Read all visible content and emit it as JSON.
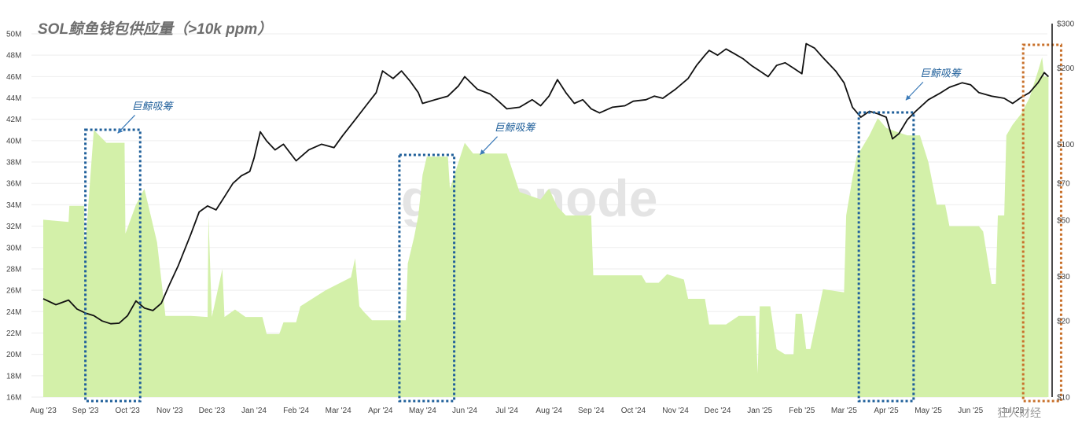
{
  "chart_data": {
    "type": "area",
    "title": "SOL鲸鱼钱包供应量（>10k ppm）",
    "watermark": "glassnode",
    "footer_text": "狂人财经",
    "x_ticks": [
      "Aug '23",
      "Sep '23",
      "Oct '23",
      "Nov '23",
      "Dec '23",
      "Jan '24",
      "Feb '24",
      "Mar '24",
      "Apr '24",
      "May '24",
      "Jun '24",
      "Jul '24",
      "Aug '24",
      "Sep '24",
      "Oct '24",
      "Nov '24",
      "Dec '24",
      "Jan '25",
      "Feb '25",
      "Mar '25",
      "Apr '25",
      "May '25",
      "Jun '25",
      "Jul '25"
    ],
    "y_left_ticks": [
      "50M",
      "48M",
      "46M",
      "44M",
      "42M",
      "40M",
      "38M",
      "36M",
      "34M",
      "32M",
      "30M",
      "28M",
      "26M",
      "24M",
      "22M",
      "20M",
      "18M",
      "16M"
    ],
    "y_right_ticks": [
      "$300",
      "$200",
      "$100",
      "$70",
      "$50",
      "$30",
      "$20",
      "$10"
    ],
    "y_left_range": [
      16,
      50
    ],
    "y_right_range": [
      10,
      300
    ],
    "y_right_scale": "log",
    "grid": true,
    "series": [
      {
        "kind": "area",
        "unit": "M",
        "color": "#d3f0a9",
        "points": [
          [
            0,
            32.6
          ],
          [
            0.6,
            32.4
          ],
          [
            0.62,
            33.9
          ],
          [
            0.97,
            33.9
          ],
          [
            0.98,
            29.2
          ],
          [
            1.2,
            41.0
          ],
          [
            1.5,
            39.8
          ],
          [
            1.93,
            39.8
          ],
          [
            1.95,
            31.3
          ],
          [
            2.2,
            34.0
          ],
          [
            2.4,
            35.5
          ],
          [
            2.7,
            30.5
          ],
          [
            2.9,
            23.6
          ],
          [
            3.5,
            23.6
          ],
          [
            3.9,
            23.5
          ],
          [
            3.92,
            33.0
          ],
          [
            4.0,
            23.5
          ],
          [
            4.25,
            28.0
          ],
          [
            4.3,
            23.5
          ],
          [
            4.55,
            24.2
          ],
          [
            4.8,
            23.5
          ],
          [
            5.2,
            23.5
          ],
          [
            5.3,
            21.9
          ],
          [
            5.6,
            21.9
          ],
          [
            5.7,
            23.0
          ],
          [
            6.0,
            23.0
          ],
          [
            6.1,
            24.5
          ],
          [
            6.7,
            26.0
          ],
          [
            7.3,
            27.2
          ],
          [
            7.4,
            29.0
          ],
          [
            7.5,
            24.5
          ],
          [
            7.6,
            24.0
          ],
          [
            7.8,
            23.2
          ],
          [
            8.0,
            23.2
          ],
          [
            8.6,
            23.2
          ],
          [
            8.65,
            28.5
          ],
          [
            8.8,
            31.0
          ],
          [
            8.9,
            33.0
          ],
          [
            9.0,
            36.8
          ],
          [
            9.1,
            38.5
          ],
          [
            9.6,
            38.5
          ],
          [
            9.65,
            35.5
          ],
          [
            10.0,
            39.8
          ],
          [
            10.2,
            38.8
          ],
          [
            10.8,
            38.8
          ],
          [
            11.0,
            38.8
          ],
          [
            11.3,
            35.2
          ],
          [
            11.8,
            34.5
          ],
          [
            12.0,
            35.5
          ],
          [
            12.2,
            33.8
          ],
          [
            12.4,
            33.0
          ],
          [
            13.0,
            33.0
          ],
          [
            13.05,
            27.4
          ],
          [
            13.8,
            27.4
          ],
          [
            14.2,
            27.4
          ],
          [
            14.3,
            26.7
          ],
          [
            14.6,
            26.7
          ],
          [
            14.8,
            27.5
          ],
          [
            15.2,
            27.0
          ],
          [
            15.3,
            25.2
          ],
          [
            15.7,
            25.2
          ],
          [
            15.8,
            22.8
          ],
          [
            16.2,
            22.8
          ],
          [
            16.5,
            23.6
          ],
          [
            16.9,
            23.6
          ],
          [
            16.95,
            18.2
          ],
          [
            17.0,
            24.5
          ],
          [
            17.25,
            24.5
          ],
          [
            17.4,
            20.5
          ],
          [
            17.6,
            20.0
          ],
          [
            17.8,
            20.0
          ],
          [
            17.85,
            23.8
          ],
          [
            18.0,
            23.8
          ],
          [
            18.1,
            20.5
          ],
          [
            18.2,
            20.5
          ],
          [
            18.5,
            26.1
          ],
          [
            19.0,
            25.8
          ],
          [
            19.05,
            33.0
          ],
          [
            19.2,
            36.5
          ],
          [
            19.3,
            38.5
          ],
          [
            19.6,
            40.5
          ],
          [
            19.8,
            42.1
          ],
          [
            20.0,
            41.2
          ],
          [
            20.2,
            40.9
          ],
          [
            20.5,
            40.5
          ],
          [
            20.8,
            40.5
          ],
          [
            21.0,
            38.0
          ],
          [
            21.2,
            34.0
          ],
          [
            21.4,
            34.0
          ],
          [
            21.5,
            32.0
          ],
          [
            22.2,
            32.0
          ],
          [
            22.3,
            31.5
          ],
          [
            22.5,
            26.6
          ],
          [
            22.6,
            26.6
          ],
          [
            22.65,
            33.0
          ],
          [
            22.8,
            33.0
          ],
          [
            22.85,
            40.5
          ],
          [
            23.0,
            41.5
          ],
          [
            23.2,
            42.5
          ],
          [
            23.4,
            44.0
          ],
          [
            23.6,
            46.5
          ],
          [
            23.7,
            47.8
          ],
          [
            23.75,
            46.0
          ],
          [
            23.85,
            46.0
          ]
        ]
      },
      {
        "kind": "line",
        "unit": "$",
        "color": "#111111",
        "points": [
          [
            0.0,
            24.5
          ],
          [
            0.3,
            23.2
          ],
          [
            0.6,
            24.2
          ],
          [
            0.8,
            22.3
          ],
          [
            1.0,
            21.5
          ],
          [
            1.2,
            21.0
          ],
          [
            1.4,
            20.0
          ],
          [
            1.6,
            19.5
          ],
          [
            1.8,
            19.6
          ],
          [
            2.0,
            21.0
          ],
          [
            2.2,
            24.0
          ],
          [
            2.4,
            22.5
          ],
          [
            2.6,
            22.0
          ],
          [
            2.8,
            23.5
          ],
          [
            3.0,
            28.0
          ],
          [
            3.2,
            33.0
          ],
          [
            3.5,
            44.0
          ],
          [
            3.7,
            54.0
          ],
          [
            3.9,
            57.0
          ],
          [
            4.1,
            55.0
          ],
          [
            4.3,
            62.0
          ],
          [
            4.5,
            70.0
          ],
          [
            4.7,
            75.0
          ],
          [
            4.9,
            78.0
          ],
          [
            5.0,
            88.0
          ],
          [
            5.15,
            112.0
          ],
          [
            5.3,
            103.0
          ],
          [
            5.5,
            95.0
          ],
          [
            5.7,
            100.0
          ],
          [
            6.0,
            86.0
          ],
          [
            6.3,
            95.0
          ],
          [
            6.6,
            100.0
          ],
          [
            6.9,
            97.0
          ],
          [
            7.1,
            108.0
          ],
          [
            7.4,
            125.0
          ],
          [
            7.7,
            145.0
          ],
          [
            7.9,
            160.0
          ],
          [
            8.05,
            195.0
          ],
          [
            8.3,
            182.0
          ],
          [
            8.5,
            195.0
          ],
          [
            8.7,
            178.0
          ],
          [
            8.9,
            160.0
          ],
          [
            9.0,
            145.0
          ],
          [
            9.3,
            150.0
          ],
          [
            9.6,
            155.0
          ],
          [
            9.85,
            170.0
          ],
          [
            10.0,
            185.0
          ],
          [
            10.3,
            165.0
          ],
          [
            10.6,
            158.0
          ],
          [
            10.8,
            148.0
          ],
          [
            11.0,
            138.0
          ],
          [
            11.3,
            140.0
          ],
          [
            11.6,
            150.0
          ],
          [
            11.8,
            142.0
          ],
          [
            12.0,
            155.0
          ],
          [
            12.2,
            180.0
          ],
          [
            12.4,
            160.0
          ],
          [
            12.6,
            145.0
          ],
          [
            12.8,
            150.0
          ],
          [
            13.0,
            138.0
          ],
          [
            13.2,
            133.0
          ],
          [
            13.5,
            140.0
          ],
          [
            13.8,
            142.0
          ],
          [
            14.0,
            148.0
          ],
          [
            14.3,
            150.0
          ],
          [
            14.5,
            155.0
          ],
          [
            14.7,
            152.0
          ],
          [
            15.0,
            165.0
          ],
          [
            15.3,
            182.0
          ],
          [
            15.5,
            205.0
          ],
          [
            15.7,
            225.0
          ],
          [
            15.8,
            235.0
          ],
          [
            16.0,
            225.0
          ],
          [
            16.2,
            238.0
          ],
          [
            16.4,
            228.0
          ],
          [
            16.6,
            218.0
          ],
          [
            16.8,
            205.0
          ],
          [
            17.0,
            195.0
          ],
          [
            17.2,
            185.0
          ],
          [
            17.4,
            205.0
          ],
          [
            17.6,
            210.0
          ],
          [
            17.8,
            200.0
          ],
          [
            18.0,
            190.0
          ],
          [
            18.1,
            250.0
          ],
          [
            18.3,
            240.0
          ],
          [
            18.5,
            220.0
          ],
          [
            18.8,
            195.0
          ],
          [
            19.0,
            175.0
          ],
          [
            19.2,
            140.0
          ],
          [
            19.4,
            128.0
          ],
          [
            19.6,
            135.0
          ],
          [
            19.8,
            132.0
          ],
          [
            20.0,
            128.0
          ],
          [
            20.15,
            105.0
          ],
          [
            20.3,
            110.0
          ],
          [
            20.5,
            125.0
          ],
          [
            20.7,
            135.0
          ],
          [
            21.0,
            150.0
          ],
          [
            21.3,
            160.0
          ],
          [
            21.5,
            168.0
          ],
          [
            21.8,
            175.0
          ],
          [
            22.0,
            172.0
          ],
          [
            22.2,
            160.0
          ],
          [
            22.5,
            155.0
          ],
          [
            22.8,
            152.0
          ],
          [
            23.0,
            145.0
          ],
          [
            23.2,
            153.0
          ],
          [
            23.4,
            160.0
          ],
          [
            23.6,
            175.0
          ],
          [
            23.75,
            192.0
          ],
          [
            23.85,
            185.0
          ]
        ]
      }
    ],
    "annotations": [
      {
        "text": "巨鲸吸筹",
        "month": 2.1,
        "value": 42.9,
        "color": "#1f5f9a"
      },
      {
        "text": "巨鲸吸筹",
        "month": 10.7,
        "value": 40.9,
        "color": "#1f5f9a"
      },
      {
        "text": "巨鲸吸筹",
        "month": 20.8,
        "value": 46.0,
        "color": "#1f5f9a"
      }
    ],
    "highlight_boxes": [
      {
        "from_month": 1.0,
        "to_month": 2.3,
        "color": "#1f5f9a"
      },
      {
        "from_month": 8.45,
        "to_month": 9.75,
        "color": "#1f5f9a"
      },
      {
        "from_month": 19.35,
        "to_month": 20.65,
        "color": "#1f5f9a"
      },
      {
        "from_month": 23.25,
        "to_month": 24.15,
        "color": "#c8702a"
      }
    ]
  }
}
